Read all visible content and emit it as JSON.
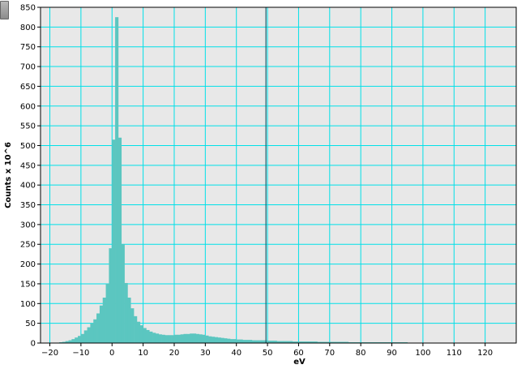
{
  "ui": {
    "handle": "resize-handle"
  },
  "colors": {
    "plot_background": "#e8e8e8",
    "grid": "#00e0e8",
    "bars": "#5bc6c0",
    "marker": "#1f5f6a"
  },
  "chart_data": {
    "type": "bar",
    "title": "",
    "xlabel": "eV",
    "ylabel": "Counts x 10^6",
    "xlim": [
      -23,
      130
    ],
    "ylim": [
      0,
      850
    ],
    "xticks": [
      -20,
      -10,
      0,
      10,
      20,
      30,
      40,
      50,
      60,
      70,
      80,
      90,
      100,
      110,
      120
    ],
    "yticks": [
      0,
      50,
      100,
      150,
      200,
      250,
      300,
      350,
      400,
      450,
      500,
      550,
      600,
      650,
      700,
      750,
      800,
      850
    ],
    "grid": true,
    "bin_width": 1,
    "vertical_marker_x": 49.5,
    "bins_start": [
      -20,
      -19,
      -18,
      -17,
      -16,
      -15,
      -14,
      -13,
      -12,
      -11,
      -10,
      -9,
      -8,
      -7,
      -6,
      -5,
      -4,
      -3,
      -2,
      -1,
      0,
      1,
      2,
      3,
      4,
      5,
      6,
      7,
      8,
      9,
      10,
      11,
      12,
      13,
      14,
      15,
      16,
      17,
      18,
      19,
      20,
      21,
      22,
      23,
      24,
      25,
      26,
      27,
      28,
      29,
      30,
      31,
      32,
      33,
      34,
      35,
      36,
      37,
      38,
      39,
      40,
      41,
      42,
      43,
      44,
      45,
      46,
      47,
      48,
      49,
      50,
      51,
      52,
      53,
      54,
      55,
      56,
      57,
      58,
      59,
      60,
      61,
      62,
      63,
      64,
      65,
      66,
      67,
      68,
      69,
      70,
      71,
      72,
      73,
      74,
      75,
      76,
      77,
      78,
      79,
      80,
      81,
      82,
      83,
      84,
      85,
      86,
      87,
      88,
      89,
      90,
      91,
      92,
      93,
      94,
      95,
      96,
      97,
      98,
      99,
      100,
      101,
      102,
      103,
      104,
      105,
      106,
      107,
      108,
      109,
      110
    ],
    "values": [
      1,
      1,
      1,
      2,
      3,
      5,
      7,
      10,
      14,
      18,
      23,
      32,
      40,
      50,
      60,
      75,
      95,
      115,
      150,
      240,
      515,
      825,
      520,
      250,
      152,
      115,
      88,
      68,
      54,
      45,
      38,
      33,
      29,
      26,
      24,
      22,
      21,
      20,
      20,
      20,
      21,
      21,
      22,
      23,
      23,
      24,
      24,
      23,
      22,
      21,
      19,
      17,
      16,
      15,
      14,
      13,
      12,
      11,
      10,
      10,
      9,
      9,
      8,
      8,
      8,
      7,
      7,
      7,
      7,
      7,
      6,
      6,
      6,
      5,
      5,
      5,
      5,
      5,
      4,
      4,
      4,
      4,
      4,
      4,
      4,
      4,
      3,
      3,
      3,
      3,
      3,
      3,
      3,
      3,
      3,
      3,
      2,
      2,
      2,
      2,
      2,
      2,
      2,
      2,
      2,
      2,
      2,
      2,
      2,
      2,
      2,
      2,
      2,
      2,
      2,
      1,
      1,
      1,
      1,
      1,
      1,
      1,
      1,
      1,
      1,
      1,
      1,
      1,
      1,
      1,
      1
    ]
  }
}
